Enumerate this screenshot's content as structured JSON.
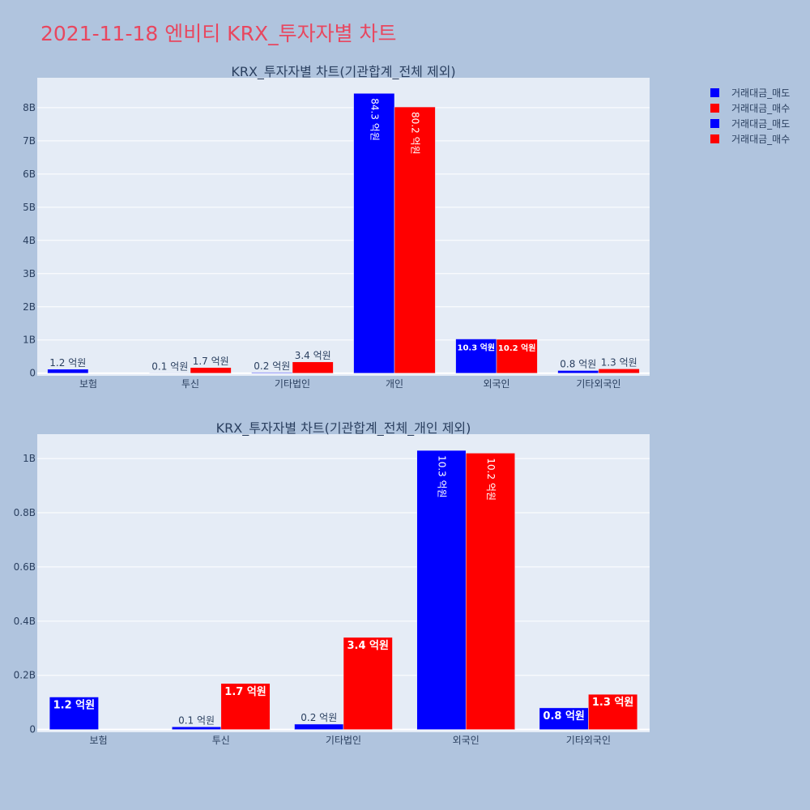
{
  "page_title": "2021-11-18 엔비티 KRX_투자자별 차트",
  "legend": [
    {
      "label": "거래대금_매도",
      "color": "#0000ff"
    },
    {
      "label": "거래대금_매수",
      "color": "#ff0000"
    },
    {
      "label": "거래대금_매도",
      "color": "#0000ff"
    },
    {
      "label": "거래대금_매수",
      "color": "#ff0000"
    }
  ],
  "colors": {
    "sell": "#0000ff",
    "buy": "#ff0000",
    "plot_bg": "#e5ecf6",
    "paper_bg": "#b0c4de",
    "title": "#e8475f"
  },
  "chart_data": [
    {
      "type": "bar",
      "title": "KRX_투자자별 차트(기관합계_전체 제외)",
      "categories": [
        "보험",
        "투신",
        "기타법인",
        "개인",
        "외국인",
        "기타외국인"
      ],
      "series": [
        {
          "name": "거래대금_매도",
          "values": [
            120000000,
            10000000,
            20000000,
            8430000000,
            1030000000,
            80000000
          ],
          "labels": [
            "1.2 억원",
            "0.1 억원",
            "0.2 억원",
            "84.3 억원",
            "10.3 억원",
            "0.8 억원"
          ]
        },
        {
          "name": "거래대금_매수",
          "values": [
            0,
            170000000,
            340000000,
            8020000000,
            1020000000,
            130000000
          ],
          "labels": [
            "",
            "1.7 억원",
            "3.4 억원",
            "80.2 억원",
            "10.2 억원",
            "1.3 억원"
          ]
        }
      ],
      "yticks": [
        0,
        1000000000,
        2000000000,
        3000000000,
        4000000000,
        5000000000,
        6000000000,
        7000000000,
        8000000000
      ],
      "ytick_labels": [
        "0",
        "1B",
        "2B",
        "3B",
        "4B",
        "5B",
        "6B",
        "7B",
        "8B"
      ],
      "ylim": [
        -80000000,
        8900000000
      ],
      "grid": true
    },
    {
      "type": "bar",
      "title": "KRX_투자자별 차트(기관합계_전체_개인 제외)",
      "categories": [
        "보험",
        "투신",
        "기타법인",
        "외국인",
        "기타외국인"
      ],
      "series": [
        {
          "name": "거래대금_매도",
          "values": [
            120000000,
            10000000,
            20000000,
            1030000000,
            80000000
          ],
          "labels": [
            "1.2 억원",
            "0.1 억원",
            "0.2 억원",
            "10.3 억원",
            "0.8 억원"
          ]
        },
        {
          "name": "거래대금_매수",
          "values": [
            0,
            170000000,
            340000000,
            1020000000,
            130000000
          ],
          "labels": [
            "",
            "1.7 억원",
            "3.4 억원",
            "10.2 억원",
            "1.3 억원"
          ]
        }
      ],
      "yticks": [
        0,
        200000000,
        400000000,
        600000000,
        800000000,
        1000000000
      ],
      "ytick_labels": [
        "0",
        "0.2B",
        "0.4B",
        "0.6B",
        "0.8B",
        "1B"
      ],
      "ylim": [
        -10000000,
        1090000000
      ],
      "grid": true
    }
  ]
}
